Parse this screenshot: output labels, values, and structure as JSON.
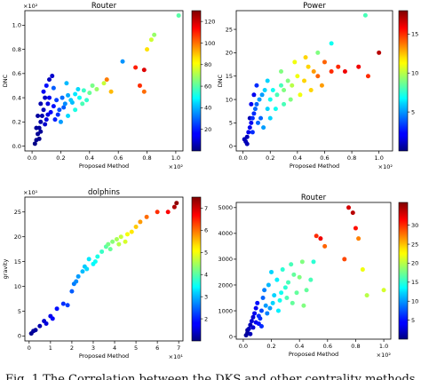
{
  "chart_data": [
    {
      "type": "scatter",
      "title": "Router",
      "xlabel": "Proposed Method",
      "ylabel": "DNC",
      "x_multiplier": "×10²",
      "y_multiplier": "×10²",
      "xlim": [
        -0.05,
        1.05
      ],
      "ylim": [
        -0.04,
        1.12
      ],
      "xticks": [
        "0.0",
        "0.2",
        "0.4",
        "0.6",
        "0.8",
        "1.0"
      ],
      "yticks": [
        "0.0",
        "0.2",
        "0.4",
        "0.6",
        "0.8",
        "1.0"
      ],
      "colorbar": {
        "min": 0,
        "max": 130,
        "ticks": [
          "20",
          "40",
          "60",
          "80",
          "100",
          "120"
        ]
      },
      "colormap": "jet",
      "points": [
        {
          "x": 0.03,
          "y": 0.05,
          "c": 2
        },
        {
          "x": 0.04,
          "y": 0.1,
          "c": 3
        },
        {
          "x": 0.05,
          "y": 0.15,
          "c": 4
        },
        {
          "x": 0.06,
          "y": 0.2,
          "c": 5
        },
        {
          "x": 0.07,
          "y": 0.25,
          "c": 6
        },
        {
          "x": 0.08,
          "y": 0.3,
          "c": 8
        },
        {
          "x": 0.05,
          "y": 0.06,
          "c": 2
        },
        {
          "x": 0.06,
          "y": 0.12,
          "c": 3
        },
        {
          "x": 0.09,
          "y": 0.18,
          "c": 10
        },
        {
          "x": 0.1,
          "y": 0.22,
          "c": 12
        },
        {
          "x": 0.11,
          "y": 0.35,
          "c": 12
        },
        {
          "x": 0.12,
          "y": 0.4,
          "c": 14
        },
        {
          "x": 0.13,
          "y": 0.28,
          "c": 16
        },
        {
          "x": 0.15,
          "y": 0.33,
          "c": 18
        },
        {
          "x": 0.17,
          "y": 0.38,
          "c": 24
        },
        {
          "x": 0.19,
          "y": 0.3,
          "c": 26
        },
        {
          "x": 0.21,
          "y": 0.4,
          "c": 30
        },
        {
          "x": 0.23,
          "y": 0.35,
          "c": 34
        },
        {
          "x": 0.25,
          "y": 0.42,
          "c": 38
        },
        {
          "x": 0.27,
          "y": 0.38,
          "c": 42
        },
        {
          "x": 0.3,
          "y": 0.43,
          "c": 46
        },
        {
          "x": 0.33,
          "y": 0.4,
          "c": 50
        },
        {
          "x": 0.36,
          "y": 0.46,
          "c": 56
        },
        {
          "x": 0.4,
          "y": 0.44,
          "c": 62
        },
        {
          "x": 0.45,
          "y": 0.47,
          "c": 68
        },
        {
          "x": 0.5,
          "y": 0.52,
          "c": 74
        },
        {
          "x": 0.08,
          "y": 0.45,
          "c": 15
        },
        {
          "x": 0.1,
          "y": 0.5,
          "c": 18
        },
        {
          "x": 0.15,
          "y": 0.48,
          "c": 28
        },
        {
          "x": 0.2,
          "y": 0.2,
          "c": 36
        },
        {
          "x": 0.25,
          "y": 0.25,
          "c": 44
        },
        {
          "x": 0.3,
          "y": 0.3,
          "c": 52
        },
        {
          "x": 0.35,
          "y": 0.35,
          "c": 58
        },
        {
          "x": 0.55,
          "y": 0.45,
          "c": 90
        },
        {
          "x": 0.52,
          "y": 0.55,
          "c": 98
        },
        {
          "x": 0.63,
          "y": 0.7,
          "c": 35
        },
        {
          "x": 0.72,
          "y": 0.65,
          "c": 110
        },
        {
          "x": 0.78,
          "y": 0.63,
          "c": 118
        },
        {
          "x": 0.75,
          "y": 0.5,
          "c": 108
        },
        {
          "x": 0.78,
          "y": 0.45,
          "c": 100
        },
        {
          "x": 0.8,
          "y": 0.8,
          "c": 85
        },
        {
          "x": 0.83,
          "y": 0.88,
          "c": 75
        },
        {
          "x": 0.85,
          "y": 0.92,
          "c": 68
        },
        {
          "x": 1.02,
          "y": 1.08,
          "c": 60
        },
        {
          "x": 0.06,
          "y": 0.35,
          "c": 6
        },
        {
          "x": 0.04,
          "y": 0.25,
          "c": 4
        },
        {
          "x": 0.02,
          "y": 0.02,
          "c": 1
        },
        {
          "x": 0.03,
          "y": 0.15,
          "c": 3
        },
        {
          "x": 0.12,
          "y": 0.55,
          "c": 8
        },
        {
          "x": 0.14,
          "y": 0.58,
          "c": 10
        },
        {
          "x": 0.18,
          "y": 0.26,
          "c": 22
        },
        {
          "x": 0.22,
          "y": 0.32,
          "c": 28
        },
        {
          "x": 0.28,
          "y": 0.36,
          "c": 40
        },
        {
          "x": 0.38,
          "y": 0.38,
          "c": 55
        },
        {
          "x": 0.42,
          "y": 0.5,
          "c": 64
        },
        {
          "x": 0.24,
          "y": 0.52,
          "c": 40
        },
        {
          "x": 0.32,
          "y": 0.47,
          "c": 44
        },
        {
          "x": 0.09,
          "y": 0.4,
          "c": 9
        },
        {
          "x": 0.11,
          "y": 0.26,
          "c": 12
        },
        {
          "x": 0.16,
          "y": 0.22,
          "c": 20
        }
      ]
    },
    {
      "type": "scatter",
      "title": "Power",
      "xlabel": "Proposed Method",
      "ylabel": "DNC",
      "x_multiplier": "×10²",
      "y_multiplier": "",
      "xlim": [
        -0.05,
        1.1
      ],
      "ylim": [
        -1,
        29
      ],
      "xticks": [
        "0.0",
        "0.2",
        "0.4",
        "0.6",
        "0.8",
        "1.0"
      ],
      "yticks": [
        "0",
        "5",
        "10",
        "15",
        "20",
        "25"
      ],
      "colorbar": {
        "min": 0,
        "max": 18,
        "ticks": [
          "5",
          "10",
          "15"
        ]
      },
      "colormap": "jet",
      "points": [
        {
          "x": 0.02,
          "y": 1,
          "c": 1
        },
        {
          "x": 0.03,
          "y": 2,
          "c": 1
        },
        {
          "x": 0.04,
          "y": 3,
          "c": 2
        },
        {
          "x": 0.05,
          "y": 4,
          "c": 2
        },
        {
          "x": 0.06,
          "y": 5,
          "c": 2
        },
        {
          "x": 0.07,
          "y": 6,
          "c": 3
        },
        {
          "x": 0.08,
          "y": 7,
          "c": 3
        },
        {
          "x": 0.09,
          "y": 8,
          "c": 4
        },
        {
          "x": 0.1,
          "y": 9,
          "c": 4
        },
        {
          "x": 0.12,
          "y": 10,
          "c": 5
        },
        {
          "x": 0.14,
          "y": 11,
          "c": 5
        },
        {
          "x": 0.16,
          "y": 12,
          "c": 6
        },
        {
          "x": 0.18,
          "y": 8,
          "c": 6
        },
        {
          "x": 0.2,
          "y": 10,
          "c": 7
        },
        {
          "x": 0.22,
          "y": 12,
          "c": 7
        },
        {
          "x": 0.25,
          "y": 11,
          "c": 8
        },
        {
          "x": 0.28,
          "y": 13,
          "c": 8
        },
        {
          "x": 0.3,
          "y": 12,
          "c": 9
        },
        {
          "x": 0.33,
          "y": 14,
          "c": 9
        },
        {
          "x": 0.36,
          "y": 13,
          "c": 10
        },
        {
          "x": 0.4,
          "y": 15,
          "c": 11
        },
        {
          "x": 0.45,
          "y": 14,
          "c": 12
        },
        {
          "x": 0.48,
          "y": 17,
          "c": 12
        },
        {
          "x": 0.52,
          "y": 16,
          "c": 13
        },
        {
          "x": 0.55,
          "y": 15,
          "c": 14
        },
        {
          "x": 0.6,
          "y": 18,
          "c": 14
        },
        {
          "x": 0.65,
          "y": 16,
          "c": 15
        },
        {
          "x": 0.7,
          "y": 17,
          "c": 15
        },
        {
          "x": 0.75,
          "y": 16,
          "c": 16
        },
        {
          "x": 0.85,
          "y": 17,
          "c": 16
        },
        {
          "x": 0.92,
          "y": 15,
          "c": 15
        },
        {
          "x": 1.0,
          "y": 20,
          "c": 17
        },
        {
          "x": 0.9,
          "y": 28,
          "c": 8
        },
        {
          "x": 0.65,
          "y": 22,
          "c": 7
        },
        {
          "x": 0.55,
          "y": 20,
          "c": 9
        },
        {
          "x": 0.05,
          "y": 6,
          "c": 1
        },
        {
          "x": 0.06,
          "y": 9,
          "c": 2
        },
        {
          "x": 0.08,
          "y": 11,
          "c": 2
        },
        {
          "x": 0.1,
          "y": 13,
          "c": 3
        },
        {
          "x": 0.13,
          "y": 6,
          "c": 4
        },
        {
          "x": 0.15,
          "y": 4,
          "c": 5
        },
        {
          "x": 0.2,
          "y": 6,
          "c": 6
        },
        {
          "x": 0.24,
          "y": 8,
          "c": 7
        },
        {
          "x": 0.3,
          "y": 9,
          "c": 8
        },
        {
          "x": 0.35,
          "y": 10,
          "c": 9
        },
        {
          "x": 0.42,
          "y": 11,
          "c": 11
        },
        {
          "x": 0.5,
          "y": 12,
          "c": 12
        },
        {
          "x": 0.58,
          "y": 13,
          "c": 13
        },
        {
          "x": 0.38,
          "y": 18,
          "c": 11
        },
        {
          "x": 0.46,
          "y": 19,
          "c": 12
        },
        {
          "x": 0.28,
          "y": 16,
          "c": 9
        },
        {
          "x": 0.18,
          "y": 14,
          "c": 6
        },
        {
          "x": 0.03,
          "y": 0.5,
          "c": 1
        },
        {
          "x": 0.01,
          "y": 1.5,
          "c": 1
        },
        {
          "x": 0.07,
          "y": 3,
          "c": 3
        },
        {
          "x": 0.11,
          "y": 5,
          "c": 4
        }
      ]
    },
    {
      "type": "scatter",
      "title": "dolphins",
      "xlabel": "Proposed Method",
      "ylabel": "gravity",
      "x_multiplier": "×10¹",
      "y_multiplier": "×10¹",
      "xlim": [
        -0.2,
        7.2
      ],
      "ylim": [
        -1,
        28
      ],
      "xticks": [
        "0",
        "1",
        "2",
        "3",
        "4",
        "5",
        "6",
        "7"
      ],
      "yticks": [
        "0",
        "5",
        "10",
        "15",
        "20",
        "25"
      ],
      "colorbar": {
        "min": 1,
        "max": 7.5,
        "ticks": [
          "2",
          "3",
          "4",
          "5",
          "6",
          "7"
        ]
      },
      "colormap": "jet",
      "points": [
        {
          "x": 0.1,
          "y": 0.5,
          "c": 1.1
        },
        {
          "x": 0.3,
          "y": 1.2,
          "c": 1.2
        },
        {
          "x": 0.5,
          "y": 2.0,
          "c": 1.3
        },
        {
          "x": 0.7,
          "y": 3.0,
          "c": 1.5
        },
        {
          "x": 1.0,
          "y": 4.0,
          "c": 1.7
        },
        {
          "x": 1.3,
          "y": 5.5,
          "c": 1.9
        },
        {
          "x": 1.6,
          "y": 6.5,
          "c": 2.1
        },
        {
          "x": 1.8,
          "y": 6.2,
          "c": 2.2
        },
        {
          "x": 2.0,
          "y": 9.0,
          "c": 2.4
        },
        {
          "x": 2.1,
          "y": 10.5,
          "c": 2.6
        },
        {
          "x": 2.3,
          "y": 12.0,
          "c": 2.8
        },
        {
          "x": 2.5,
          "y": 13.0,
          "c": 3.0
        },
        {
          "x": 2.6,
          "y": 14.0,
          "c": 3.1
        },
        {
          "x": 2.8,
          "y": 15.5,
          "c": 3.3
        },
        {
          "x": 3.0,
          "y": 14.5,
          "c": 3.4
        },
        {
          "x": 3.2,
          "y": 16.0,
          "c": 3.6
        },
        {
          "x": 3.4,
          "y": 17.0,
          "c": 3.8
        },
        {
          "x": 3.6,
          "y": 18.0,
          "c": 4.0
        },
        {
          "x": 3.8,
          "y": 17.5,
          "c": 4.1
        },
        {
          "x": 3.9,
          "y": 19.0,
          "c": 4.3
        },
        {
          "x": 4.1,
          "y": 19.5,
          "c": 4.5
        },
        {
          "x": 4.3,
          "y": 20.0,
          "c": 4.7
        },
        {
          "x": 4.5,
          "y": 19.0,
          "c": 4.8
        },
        {
          "x": 4.6,
          "y": 20.5,
          "c": 5.0
        },
        {
          "x": 5.0,
          "y": 22.0,
          "c": 5.4
        },
        {
          "x": 5.2,
          "y": 23.0,
          "c": 5.7
        },
        {
          "x": 5.5,
          "y": 24.0,
          "c": 6.0
        },
        {
          "x": 6.0,
          "y": 25.0,
          "c": 6.4
        },
        {
          "x": 6.5,
          "y": 25.0,
          "c": 6.7
        },
        {
          "x": 6.8,
          "y": 26.0,
          "c": 7.2
        },
        {
          "x": 6.9,
          "y": 26.8,
          "c": 7.4
        },
        {
          "x": 0.2,
          "y": 1.0,
          "c": 1.2
        },
        {
          "x": 0.8,
          "y": 2.5,
          "c": 1.6
        },
        {
          "x": 1.1,
          "y": 3.5,
          "c": 1.8
        },
        {
          "x": 2.2,
          "y": 11.0,
          "c": 2.7
        },
        {
          "x": 2.7,
          "y": 13.5,
          "c": 3.2
        },
        {
          "x": 3.1,
          "y": 15.0,
          "c": 3.5
        },
        {
          "x": 3.7,
          "y": 18.5,
          "c": 4.2
        },
        {
          "x": 4.2,
          "y": 18.5,
          "c": 4.6
        },
        {
          "x": 4.8,
          "y": 21.0,
          "c": 5.2
        }
      ]
    },
    {
      "type": "scatter",
      "title": "Router",
      "xlabel": "Proposed Method",
      "ylabel": "",
      "x_multiplier": "×10²",
      "y_multiplier": "",
      "xlim": [
        -0.05,
        1.05
      ],
      "ylim": [
        -100,
        5200
      ],
      "xticks": [
        "0.0",
        "0.2",
        "0.4",
        "0.6",
        "0.8",
        "1.0"
      ],
      "yticks": [
        "0",
        "1000",
        "2000",
        "3000",
        "4000",
        "5000"
      ],
      "colorbar": {
        "min": 0,
        "max": 36,
        "ticks": [
          "5",
          "10",
          "15",
          "20",
          "25",
          "30"
        ]
      },
      "colormap": "jet",
      "points": [
        {
          "x": 0.02,
          "y": 50,
          "c": 1
        },
        {
          "x": 0.03,
          "y": 150,
          "c": 1
        },
        {
          "x": 0.04,
          "y": 300,
          "c": 2
        },
        {
          "x": 0.05,
          "y": 450,
          "c": 2
        },
        {
          "x": 0.06,
          "y": 600,
          "c": 3
        },
        {
          "x": 0.07,
          "y": 750,
          "c": 3
        },
        {
          "x": 0.08,
          "y": 900,
          "c": 4
        },
        {
          "x": 0.09,
          "y": 1100,
          "c": 4
        },
        {
          "x": 0.1,
          "y": 1300,
          "c": 5
        },
        {
          "x": 0.11,
          "y": 500,
          "c": 5
        },
        {
          "x": 0.12,
          "y": 700,
          "c": 6
        },
        {
          "x": 0.13,
          "y": 1000,
          "c": 7
        },
        {
          "x": 0.14,
          "y": 1500,
          "c": 8
        },
        {
          "x": 0.15,
          "y": 1800,
          "c": 9
        },
        {
          "x": 0.16,
          "y": 1200,
          "c": 10
        },
        {
          "x": 0.18,
          "y": 2000,
          "c": 11
        },
        {
          "x": 0.2,
          "y": 2500,
          "c": 12
        },
        {
          "x": 0.22,
          "y": 1600,
          "c": 12
        },
        {
          "x": 0.24,
          "y": 2200,
          "c": 13
        },
        {
          "x": 0.26,
          "y": 1400,
          "c": 14
        },
        {
          "x": 0.28,
          "y": 2600,
          "c": 15
        },
        {
          "x": 0.3,
          "y": 1900,
          "c": 15
        },
        {
          "x": 0.32,
          "y": 2100,
          "c": 16
        },
        {
          "x": 0.34,
          "y": 2800,
          "c": 16
        },
        {
          "x": 0.36,
          "y": 2400,
          "c": 17
        },
        {
          "x": 0.38,
          "y": 1700,
          "c": 17
        },
        {
          "x": 0.4,
          "y": 2300,
          "c": 18
        },
        {
          "x": 0.42,
          "y": 2900,
          "c": 18
        },
        {
          "x": 0.45,
          "y": 1800,
          "c": 17
        },
        {
          "x": 0.48,
          "y": 2200,
          "c": 16
        },
        {
          "x": 0.5,
          "y": 2900,
          "c": 15
        },
        {
          "x": 0.52,
          "y": 3900,
          "c": 30
        },
        {
          "x": 0.55,
          "y": 3800,
          "c": 32
        },
        {
          "x": 0.58,
          "y": 3500,
          "c": 28
        },
        {
          "x": 0.72,
          "y": 3000,
          "c": 29
        },
        {
          "x": 0.75,
          "y": 5000,
          "c": 33
        },
        {
          "x": 0.78,
          "y": 4800,
          "c": 34
        },
        {
          "x": 0.8,
          "y": 4200,
          "c": 31
        },
        {
          "x": 0.82,
          "y": 3800,
          "c": 27
        },
        {
          "x": 0.85,
          "y": 2600,
          "c": 22
        },
        {
          "x": 0.88,
          "y": 1600,
          "c": 20
        },
        {
          "x": 1.0,
          "y": 1800,
          "c": 21
        },
        {
          "x": 0.03,
          "y": 250,
          "c": 1
        },
        {
          "x": 0.05,
          "y": 100,
          "c": 2
        },
        {
          "x": 0.07,
          "y": 350,
          "c": 3
        },
        {
          "x": 0.09,
          "y": 550,
          "c": 4
        },
        {
          "x": 0.11,
          "y": 800,
          "c": 6
        },
        {
          "x": 0.13,
          "y": 400,
          "c": 6
        },
        {
          "x": 0.17,
          "y": 900,
          "c": 9
        },
        {
          "x": 0.19,
          "y": 1100,
          "c": 10
        },
        {
          "x": 0.21,
          "y": 1300,
          "c": 12
        },
        {
          "x": 0.25,
          "y": 1000,
          "c": 13
        },
        {
          "x": 0.27,
          "y": 1700,
          "c": 14
        },
        {
          "x": 0.31,
          "y": 1500,
          "c": 16
        },
        {
          "x": 0.35,
          "y": 1300,
          "c": 17
        },
        {
          "x": 0.43,
          "y": 1200,
          "c": 18
        }
      ]
    }
  ],
  "caption": "Fig. 1  The Correlation between the DKS and other centrality methods. The"
}
